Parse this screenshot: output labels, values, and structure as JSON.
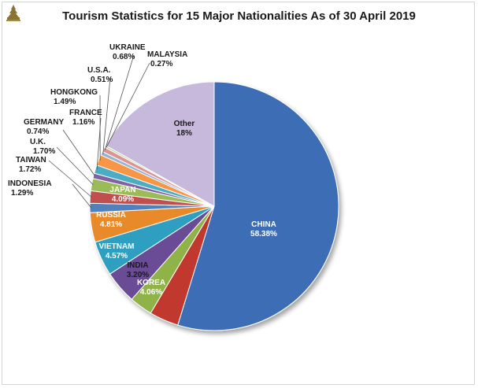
{
  "chart_data": {
    "type": "pie",
    "title": "Tourism Statistics for 15 Major Nationalities As of 30 April 2019",
    "slices": [
      {
        "label": "CHINA",
        "value": 58.38,
        "display": "58.38%",
        "color": "#3d6db5"
      },
      {
        "label": "KOREA",
        "value": 4.06,
        "display": "4.06%",
        "color": "#c0392f"
      },
      {
        "label": "INDIA",
        "value": 3.2,
        "display": "3.20%",
        "color": "#8fb34a"
      },
      {
        "label": "VIETNAM",
        "value": 4.57,
        "display": "4.57%",
        "color": "#6a4b96"
      },
      {
        "label": "RUSSIA",
        "value": 4.81,
        "display": "4.81%",
        "color": "#2f9fc0"
      },
      {
        "label": "JAPAN",
        "value": 4.09,
        "display": "4.09%",
        "color": "#e98a2c"
      },
      {
        "label": "INDONESIA",
        "value": 1.29,
        "display": "1.29%",
        "color": "#4f81bd"
      },
      {
        "label": "TAIWAN",
        "value": 1.72,
        "display": "1.72%",
        "color": "#c0504d"
      },
      {
        "label": "U.K.",
        "value": 1.7,
        "display": "1.70%",
        "color": "#9bbb59"
      },
      {
        "label": "GERMANY",
        "value": 0.74,
        "display": "0.74%",
        "color": "#8064a2"
      },
      {
        "label": "FRANCE",
        "value": 1.16,
        "display": "1.16%",
        "color": "#4bacc6"
      },
      {
        "label": "HONGKONG",
        "value": 1.49,
        "display": "1.49%",
        "color": "#f79646"
      },
      {
        "label": "U.S.A.",
        "value": 0.51,
        "display": "0.51%",
        "color": "#95b3d7"
      },
      {
        "label": "UKRAINE",
        "value": 0.68,
        "display": "0.68%",
        "color": "#d99694"
      },
      {
        "label": "MALAYSIA",
        "value": 0.27,
        "display": "0.27%",
        "color": "#c3d69b"
      },
      {
        "label": "Other",
        "value": 18,
        "display": "18%",
        "color": "#c6b9dc"
      }
    ]
  }
}
